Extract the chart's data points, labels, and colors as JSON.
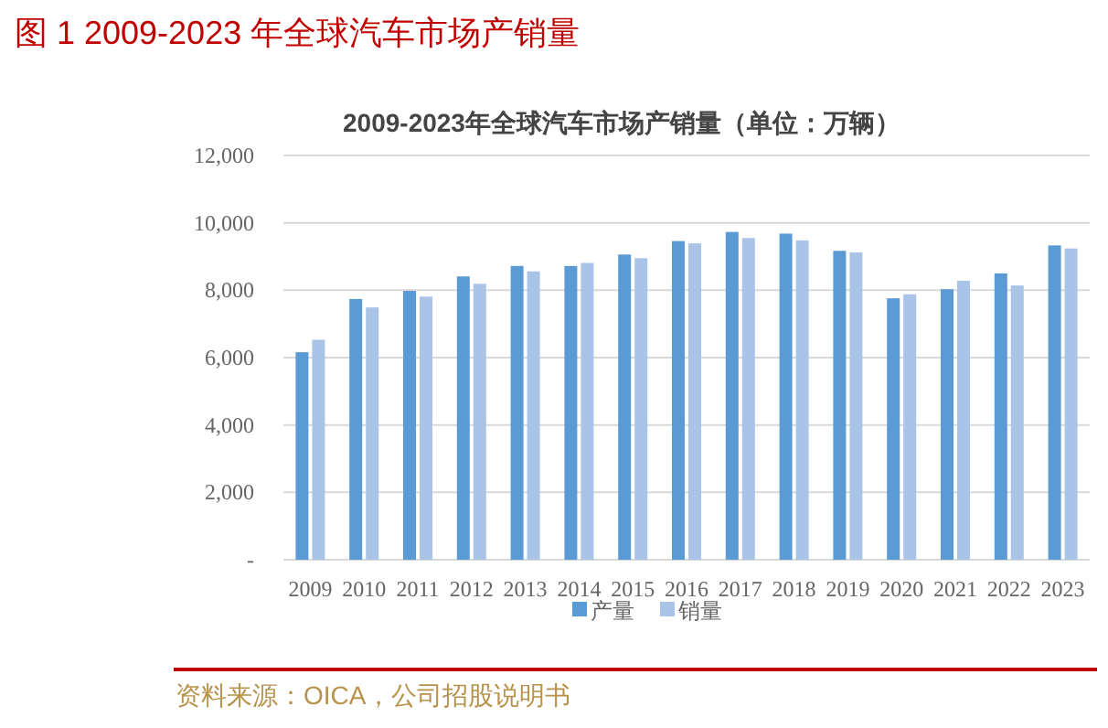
{
  "chart_data": {
    "type": "bar",
    "title": "图 1 2009-2023 年全球汽车市场产销量",
    "subtitle": "2009-2023年全球汽车市场产销量（单位：万辆）",
    "categories": [
      "2009",
      "2010",
      "2011",
      "2012",
      "2013",
      "2014",
      "2015",
      "2016",
      "2017",
      "2018",
      "2019",
      "2020",
      "2021",
      "2022",
      "2023"
    ],
    "series": [
      {
        "name": "产量",
        "color": "#5b9bd5",
        "values": [
          6160,
          7740,
          7980,
          8410,
          8720,
          8720,
          9060,
          9460,
          9730,
          9680,
          9170,
          7760,
          8030,
          8500,
          9330
        ]
      },
      {
        "name": "销量",
        "color": "#a9c4e6",
        "values": [
          6530,
          7490,
          7810,
          8190,
          8560,
          8810,
          8950,
          9390,
          9550,
          9480,
          9120,
          7880,
          8280,
          8140,
          9240
        ]
      }
    ],
    "ylim": [
      0,
      12000
    ],
    "yticks": [
      {
        "value": 0,
        "label": "-"
      },
      {
        "value": 2000,
        "label": "2,000"
      },
      {
        "value": 4000,
        "label": "4,000"
      },
      {
        "value": 6000,
        "label": "6,000"
      },
      {
        "value": 8000,
        "label": "8,000"
      },
      {
        "value": 10000,
        "label": "10,000"
      },
      {
        "value": 12000,
        "label": "12,000"
      }
    ],
    "grid": "y",
    "legend": "bottom",
    "annotations": [
      "资料来源：OICA，公司招股说明书"
    ]
  }
}
